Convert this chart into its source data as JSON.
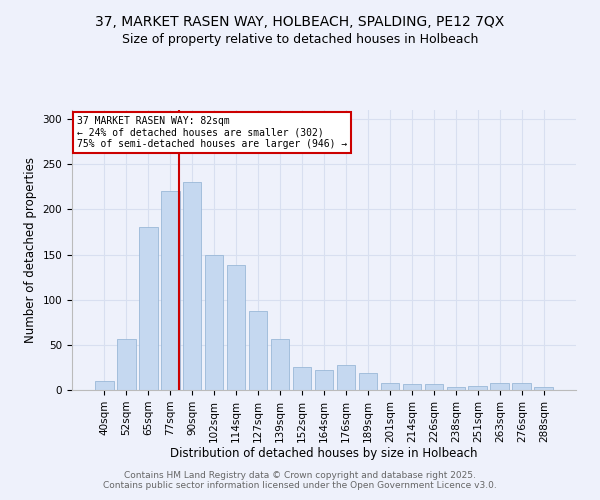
{
  "title": "37, MARKET RASEN WAY, HOLBEACH, SPALDING, PE12 7QX",
  "subtitle": "Size of property relative to detached houses in Holbeach",
  "xlabel": "Distribution of detached houses by size in Holbeach",
  "ylabel": "Number of detached properties",
  "categories": [
    "40sqm",
    "52sqm",
    "65sqm",
    "77sqm",
    "90sqm",
    "102sqm",
    "114sqm",
    "127sqm",
    "139sqm",
    "152sqm",
    "164sqm",
    "176sqm",
    "189sqm",
    "201sqm",
    "214sqm",
    "226sqm",
    "238sqm",
    "251sqm",
    "263sqm",
    "276sqm",
    "288sqm"
  ],
  "values": [
    10,
    56,
    180,
    220,
    230,
    150,
    138,
    88,
    56,
    26,
    22,
    28,
    19,
    8,
    7,
    7,
    3,
    4,
    8,
    8,
    3
  ],
  "bar_color": "#c5d8f0",
  "bar_edge_color": "#9ab8d8",
  "vline_color": "#cc0000",
  "vline_pos": 3.42,
  "annotation_text": "37 MARKET RASEN WAY: 82sqm\n← 24% of detached houses are smaller (302)\n75% of semi-detached houses are larger (946) →",
  "annotation_box_facecolor": "#ffffff",
  "annotation_box_edgecolor": "#cc0000",
  "ylim": [
    0,
    310
  ],
  "yticks": [
    0,
    50,
    100,
    150,
    200,
    250,
    300
  ],
  "background_color": "#eef1fb",
  "grid_color": "#d8dff0",
  "footer": "Contains HM Land Registry data © Crown copyright and database right 2025.\nContains public sector information licensed under the Open Government Licence v3.0.",
  "title_fontsize": 10,
  "subtitle_fontsize": 9,
  "axis_label_fontsize": 8.5,
  "tick_fontsize": 7.5,
  "annotation_fontsize": 7,
  "footer_fontsize": 6.5,
  "footer_color": "#666666"
}
